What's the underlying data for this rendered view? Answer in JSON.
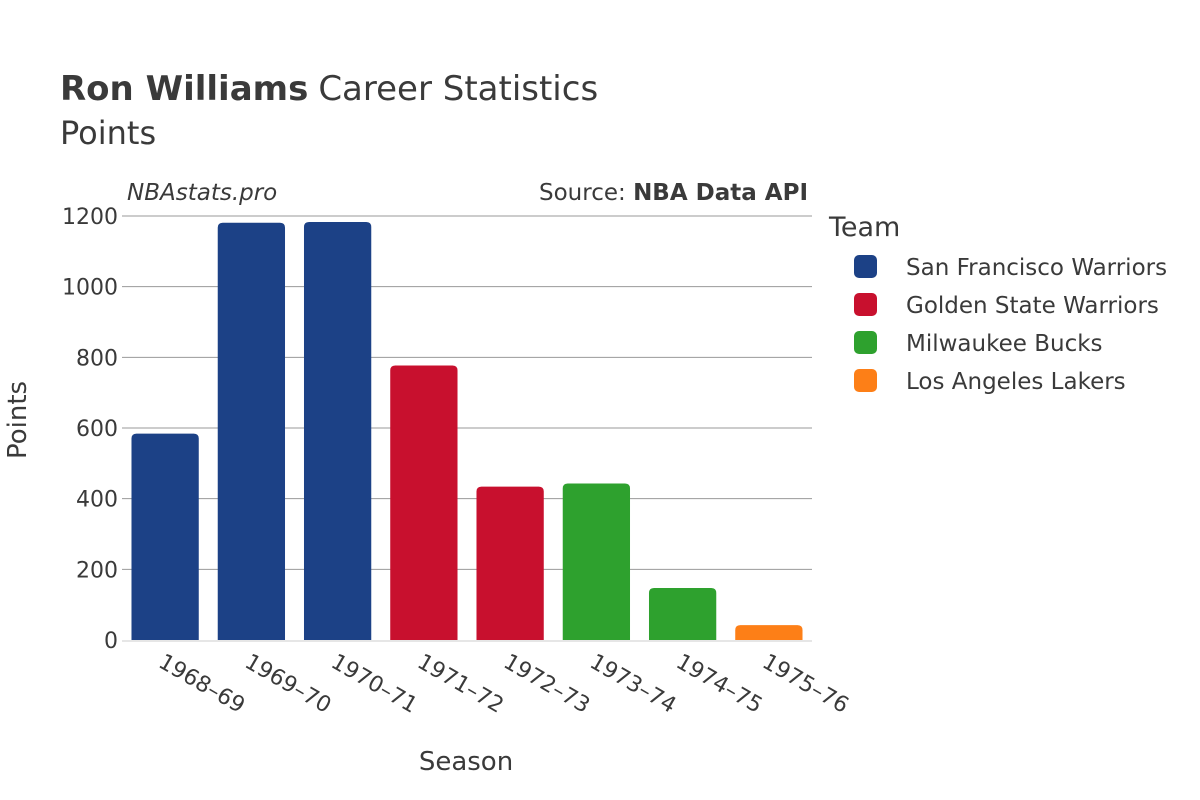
{
  "header": {
    "title_bold": "Ron Williams",
    "title_rest": "Career Statistics",
    "subtitle": "Points"
  },
  "watermark": "NBAstats.pro",
  "source": {
    "prefix": "Source: ",
    "name": "NBA Data API"
  },
  "legend": {
    "title": "Team",
    "placement": "right"
  },
  "chart_data": {
    "type": "bar",
    "xlabel": "Season",
    "ylabel": "Points",
    "ylim": [
      0,
      1200
    ],
    "yticks": [
      0,
      200,
      400,
      600,
      800,
      1000,
      1200
    ],
    "grid": true,
    "categories": [
      "1968–69",
      "1969–70",
      "1970–71",
      "1971–72",
      "1972–73",
      "1973–74",
      "1974–75",
      "1975–76"
    ],
    "values": [
      584,
      1181,
      1183,
      777,
      434,
      443,
      147,
      42
    ],
    "teams": [
      "San Francisco Warriors",
      "San Francisco Warriors",
      "San Francisco Warriors",
      "Golden State Warriors",
      "Golden State Warriors",
      "Milwaukee Bucks",
      "Milwaukee Bucks",
      "Los Angeles Lakers"
    ],
    "series": [
      {
        "name": "San Francisco Warriors",
        "color": "#1c4186"
      },
      {
        "name": "Golden State Warriors",
        "color": "#c8102e"
      },
      {
        "name": "Milwaukee Bucks",
        "color": "#2ea12e"
      },
      {
        "name": "Los Angeles Lakers",
        "color": "#fd7f17"
      }
    ]
  }
}
